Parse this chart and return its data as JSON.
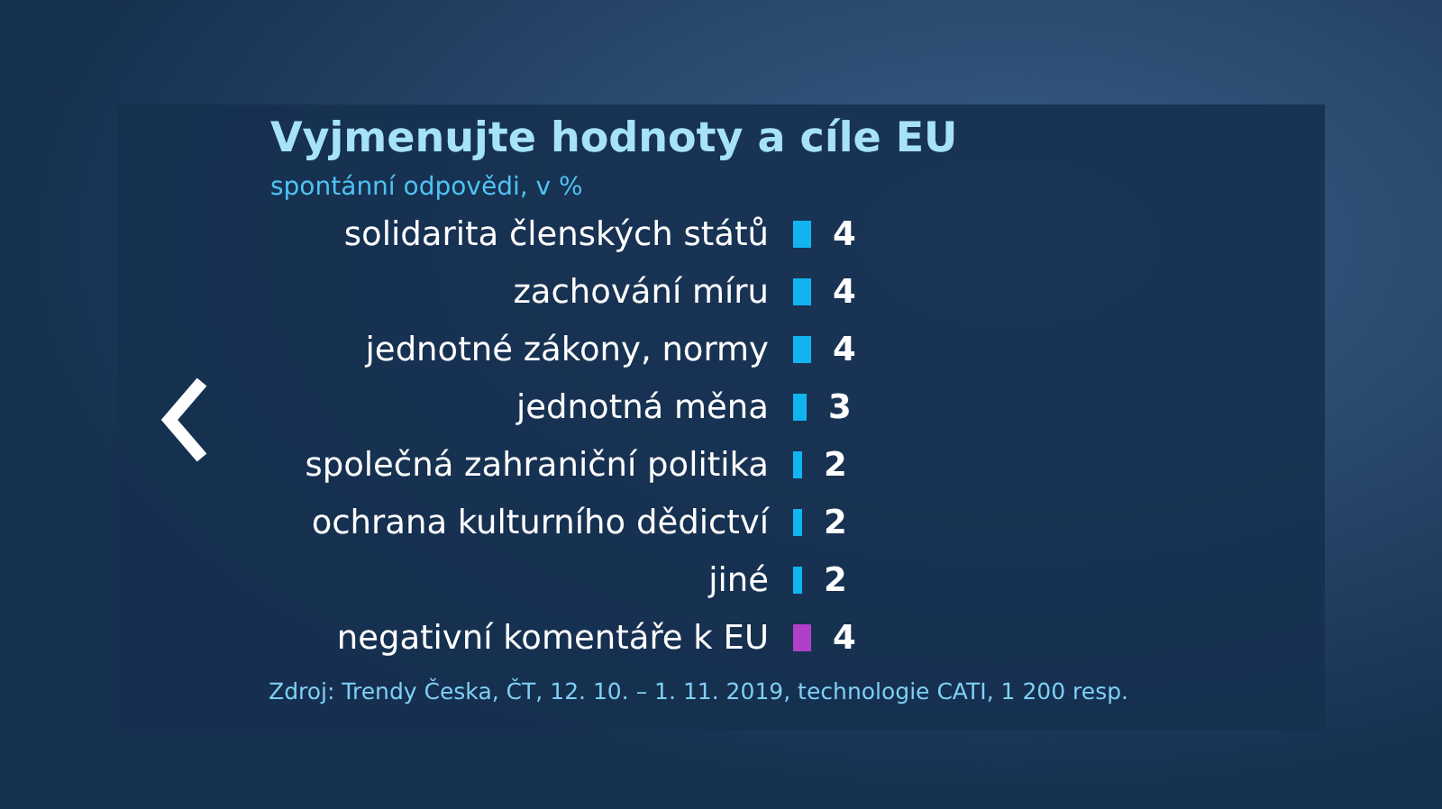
{
  "chart_data": {
    "type": "bar",
    "orientation": "horizontal",
    "title": "Vyjmenujte hodnoty a cíle EU",
    "subtitle": "spontánní odpovědi, v %",
    "categories": [
      "solidarita členských států",
      "zachování míru",
      "jednotné zákony, normy",
      "jednotná měna",
      "společná zahraniční politika",
      "ochrana kulturního dědictví",
      "jiné",
      "negativní komentáře k EU"
    ],
    "values": [
      4,
      4,
      4,
      3,
      2,
      2,
      2,
      4
    ],
    "colors": [
      "#12b4f0",
      "#12b4f0",
      "#12b4f0",
      "#12b4f0",
      "#12b4f0",
      "#12b4f0",
      "#12b4f0",
      "#b040c8"
    ],
    "data_labels": true,
    "annotations": [
      "Zdroj: Trendy Česka, ČT, 12. 10. – 1. 11. 2019, technologie CATI, 1 200 resp."
    ]
  }
}
